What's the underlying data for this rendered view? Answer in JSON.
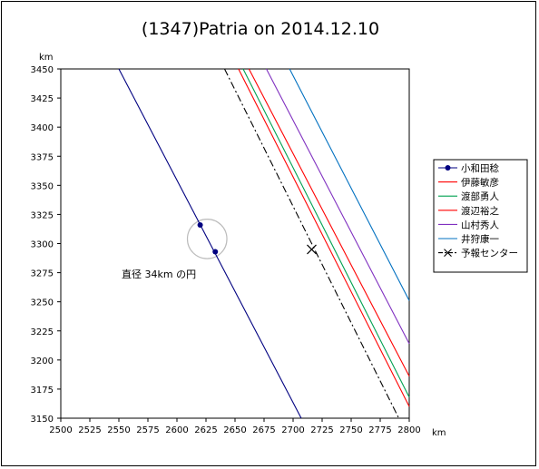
{
  "chart_data": {
    "type": "line",
    "title": "(1347)Patria  on  2014.12.10",
    "x_unit": "km",
    "y_unit": "km",
    "xlim": [
      2500,
      2800
    ],
    "ylim": [
      3150,
      3450
    ],
    "x_ticks": [
      2500,
      2525,
      2550,
      2575,
      2600,
      2625,
      2650,
      2675,
      2700,
      2725,
      2750,
      2775,
      2800
    ],
    "y_ticks": [
      3150,
      3175,
      3200,
      3225,
      3250,
      3275,
      3300,
      3325,
      3350,
      3375,
      3400,
      3425,
      3450
    ],
    "series": [
      {
        "name": "小和田稔",
        "color": "#000080",
        "style": "solid",
        "marker": "dot",
        "x": [
          2550,
          2707
        ],
        "y": [
          3450,
          3150
        ],
        "points": [
          [
            2620,
            3316
          ],
          [
            2633,
            3293
          ]
        ]
      },
      {
        "name": "伊藤敏彦",
        "color": "#ff0000",
        "style": "solid",
        "x": [
          2662,
          2800
        ],
        "y": [
          3450,
          3186
        ]
      },
      {
        "name": "渡部勇人",
        "color": "#00a050",
        "style": "solid",
        "x": [
          2657,
          2800
        ],
        "y": [
          3450,
          3168
        ]
      },
      {
        "name": "渡辺裕之",
        "color": "#ff0000",
        "style": "solid",
        "x": [
          2653,
          2800
        ],
        "y": [
          3450,
          3160
        ]
      },
      {
        "name": "山村秀人",
        "color": "#8030c0",
        "style": "solid",
        "x": [
          2677,
          2800
        ],
        "y": [
          3450,
          3214
        ]
      },
      {
        "name": "井狩康一",
        "color": "#0070c0",
        "style": "solid",
        "x": [
          2697,
          2800
        ],
        "y": [
          3450,
          3251
        ]
      },
      {
        "name": "予報センター",
        "color": "#000000",
        "style": "dashdot",
        "marker": "x",
        "x": [
          2641,
          2791
        ],
        "y": [
          3450,
          3150
        ],
        "points": [
          [
            2716,
            3295
          ]
        ]
      }
    ],
    "circle": {
      "cx": 2626,
      "cy": 3304,
      "diameter": 34,
      "color": "#bbbbbb"
    },
    "annotation": "直径 34km の円",
    "grid": false,
    "legend_position": "right"
  }
}
